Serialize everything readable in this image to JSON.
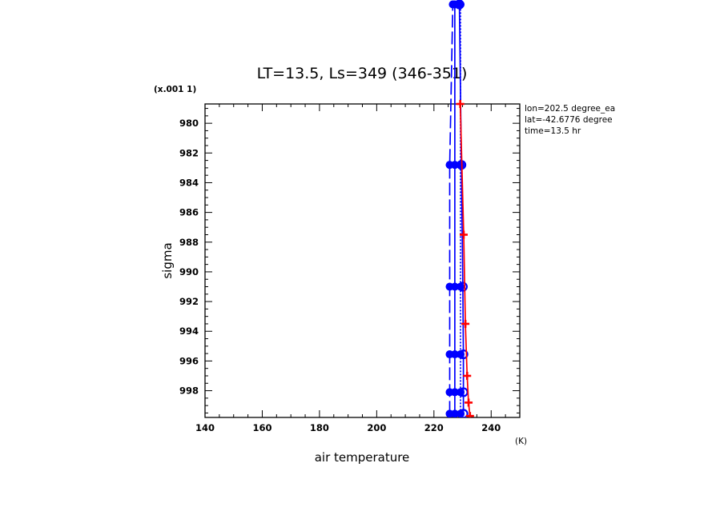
{
  "chart_data": {
    "type": "line",
    "title": "LT=13.5, Ls=349 (346-351)",
    "xlabel": "air temperature",
    "xunit": "(K)",
    "ylabel": "sigma",
    "yscale_label": "(x.001 1)",
    "xlim": [
      140,
      250
    ],
    "ylim": [
      999.8,
      978.7
    ],
    "x_ticks": [
      140,
      160,
      180,
      200,
      220,
      240
    ],
    "y_ticks": [
      980,
      982,
      984,
      986,
      988,
      990,
      992,
      994,
      996,
      998
    ],
    "annotations": [
      "lon=202.5 degree_ea",
      "lat=-42.6776 degree",
      "time=13.5 hr"
    ],
    "colors": {
      "blue": "#0000ff",
      "red": "#ff0000",
      "axis": "#000000"
    },
    "series": [
      {
        "color": "#0000ff",
        "style": "long-dash",
        "marker": "filled-circle",
        "points": [
          [
            225.5,
            999.55
          ],
          [
            225.5,
            998.1
          ],
          [
            225.5,
            995.55
          ],
          [
            225.5,
            991.0
          ],
          [
            225.5,
            982.8
          ],
          [
            226.6,
            972.0
          ]
        ]
      },
      {
        "color": "#0000ff",
        "style": "solid",
        "marker": "filled-circle",
        "points": [
          [
            227.3,
            999.55
          ],
          [
            227.3,
            998.1
          ],
          [
            227.3,
            995.55
          ],
          [
            227.3,
            991.0
          ],
          [
            227.3,
            982.8
          ],
          [
            227.3,
            972.0
          ]
        ]
      },
      {
        "color": "#0000ff",
        "style": "dotted",
        "marker": "filled-circle",
        "points": [
          [
            229.3,
            999.55
          ],
          [
            229.3,
            998.1
          ],
          [
            229.3,
            995.55
          ],
          [
            229.3,
            991.0
          ],
          [
            229.3,
            982.8
          ],
          [
            229.3,
            972.0
          ]
        ]
      },
      {
        "color": "#0000ff",
        "style": "solid",
        "marker": "open-circle",
        "points": [
          [
            230.3,
            999.55
          ],
          [
            230.3,
            998.1
          ],
          [
            230.3,
            995.55
          ],
          [
            230.1,
            991.0
          ],
          [
            229.6,
            982.8
          ],
          [
            228.9,
            972.0
          ]
        ]
      },
      {
        "color": "#ff0000",
        "style": "solid",
        "marker": "plus",
        "points": [
          [
            232.6,
            999.7
          ],
          [
            232.1,
            998.8
          ],
          [
            231.6,
            997.0
          ],
          [
            231.0,
            993.5
          ],
          [
            230.4,
            987.5
          ],
          [
            229.2,
            978.7
          ]
        ]
      }
    ]
  }
}
